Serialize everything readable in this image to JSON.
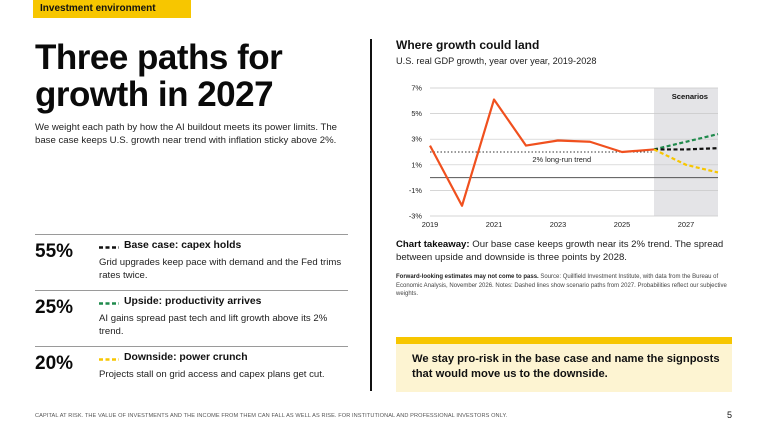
{
  "tag": "Investment environment",
  "title": "Three paths for growth in 2027",
  "intro": "We weight each path by how the AI buildout meets its power limits. The base case keeps U.S. growth near trend with inflation sticky above 2%.",
  "scenarios": [
    {
      "pct": "55%",
      "name": "Base case: capex holds",
      "desc": "Grid upgrades keep pace with demand and the Fed trims rates twice.",
      "color": "#111111"
    },
    {
      "pct": "25%",
      "name": "Upside: productivity arrives",
      "desc": "AI gains spread past tech and lift growth above its 2% trend.",
      "color": "#1f8a4c"
    },
    {
      "pct": "20%",
      "name": "Downside: power crunch",
      "desc": "Projects stall on grid access and capex plans get cut.",
      "color": "#f7c600"
    }
  ],
  "chart": {
    "title": "Where growth could land",
    "subtitle": "U.S. real GDP growth, year over year, 2019-2028",
    "takeaway_label": "Chart takeaway:",
    "takeaway": "Our base case keeps growth near its 2% trend. The spread between upside and downside is three points by 2028.",
    "fine_label": "Forward-looking estimates may not come to pass.",
    "fine": "Source: Quillfield Investment Institute, with data from the Bureau of Economic Analysis, November 2026. Notes: Dashed lines show scenario paths from 2027. Probabilities reflect our subjective weights."
  },
  "callout": "We stay pro-risk in the base case and name the signposts that would move us to the downside.",
  "footer": "CAPITAL AT RISK. THE VALUE OF INVESTMENTS AND THE INCOME FROM THEM CAN FALL AS WELL AS RISE. FOR INSTITUTIONAL AND PROFESSIONAL INVESTORS ONLY.",
  "page_number": "5",
  "chart_data": {
    "type": "line",
    "title": "Where growth could land",
    "subtitle": "U.S. real GDP growth, year over year, 2019-2028",
    "ylim": [
      -3,
      7
    ],
    "yticks": [
      "7%",
      "5%",
      "3%",
      "1%",
      "-1%",
      "-3%"
    ],
    "ytick_values": [
      7,
      5,
      3,
      1,
      -1,
      -3
    ],
    "xlim": [
      2019,
      2028
    ],
    "xticks": [
      "2019",
      "2021",
      "2023",
      "2025",
      "2027"
    ],
    "xtick_values": [
      2019,
      2021,
      2023,
      2025,
      2027
    ],
    "grid": "horizontal",
    "shaded_region": {
      "label": "Scenarios",
      "from": 2026,
      "to": 2028
    },
    "reference_line": {
      "label": "2% long-run trend",
      "value": 2
    },
    "history": {
      "x": [
        2019,
        2020,
        2021,
        2022,
        2023,
        2024,
        2025,
        2026
      ],
      "y": [
        2.5,
        -2.2,
        6.1,
        2.5,
        2.9,
        2.8,
        2.0,
        2.2
      ],
      "color": "#f0501e"
    },
    "scenarios": [
      {
        "x": [
          2026,
          2027,
          2028
        ],
        "y": [
          2.2,
          2.8,
          3.4
        ],
        "color": "#1f8a4c"
      },
      {
        "x": [
          2026,
          2027,
          2028
        ],
        "y": [
          2.2,
          2.2,
          2.3
        ],
        "color": "#111111"
      },
      {
        "x": [
          2026,
          2027,
          2028
        ],
        "y": [
          2.2,
          1.0,
          0.4
        ],
        "color": "#f7c600"
      }
    ]
  }
}
